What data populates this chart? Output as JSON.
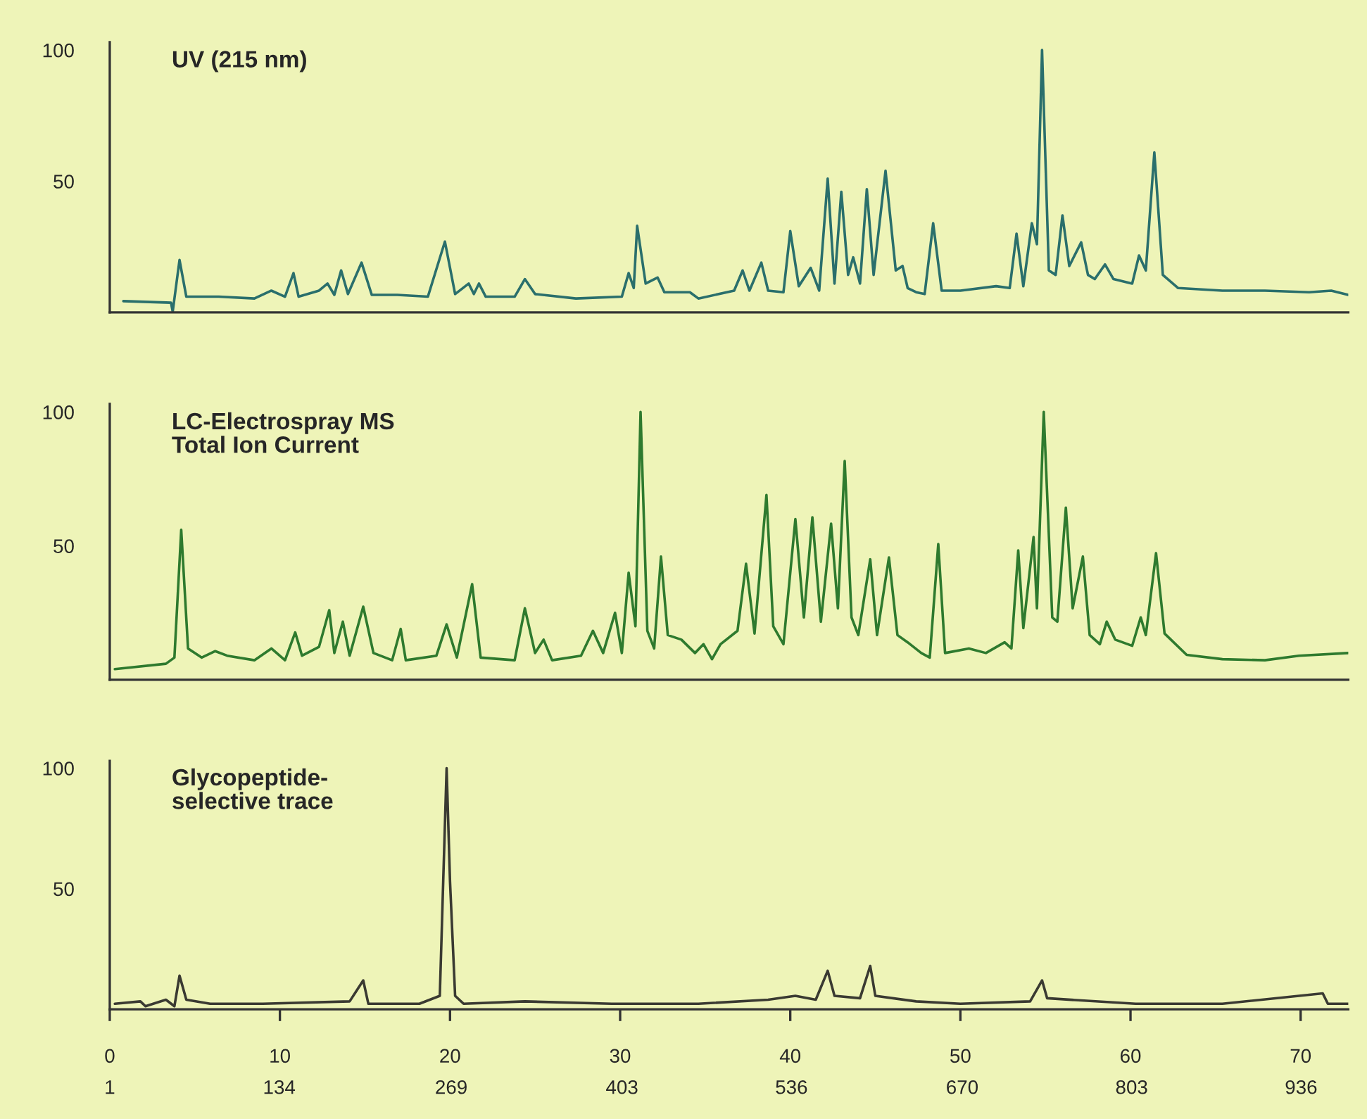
{
  "chart_data": [
    {
      "type": "line",
      "title": "UV (215 nm)",
      "tick_labels": "y",
      "xlim": [
        0,
        72.8
      ],
      "ylim": [
        0,
        103
      ],
      "xticks": [
        0,
        10,
        20,
        30,
        40,
        50,
        60,
        70
      ],
      "yticks": [
        50,
        100
      ],
      "grid": false,
      "series": [
        {
          "color": "#2a6f6c",
          "x": [
            0.8,
            3.6,
            3.7,
            4.1,
            4.5,
            6.4,
            8.5,
            9.5,
            10.3,
            10.8,
            11.1,
            12.3,
            12.8,
            13.2,
            13.6,
            14.0,
            14.8,
            15.4,
            16.9,
            18.7,
            19.7,
            20.3,
            21.1,
            21.4,
            21.7,
            22.1,
            23.8,
            24.4,
            25.0,
            27.4,
            30.1,
            30.5,
            30.8,
            31.0,
            31.5,
            32.2,
            32.6,
            34.1,
            34.6,
            36.7,
            37.2,
            37.6,
            38.3,
            38.7,
            39.6,
            40.0,
            40.5,
            41.2,
            41.7,
            42.2,
            42.6,
            43.0,
            43.4,
            43.7,
            44.1,
            44.5,
            44.9,
            45.6,
            46.2,
            46.6,
            46.9,
            47.4,
            47.9,
            48.4,
            48.9,
            50.0,
            52.1,
            52.9,
            53.3,
            53.7,
            54.2,
            54.5,
            54.8,
            55.2,
            55.6,
            56.0,
            56.4,
            57.1,
            57.5,
            57.9,
            58.5,
            59.0,
            60.1,
            60.5,
            60.9,
            61.4,
            61.9,
            62.8,
            65.4,
            67.9,
            70.5,
            71.8,
            72.8
          ],
          "values": [
            4.3,
            3.7,
            0.3,
            20,
            6,
            6,
            5.3,
            8.3,
            6,
            15,
            6,
            8.3,
            11,
            6.7,
            16,
            7,
            19,
            6.7,
            6.7,
            6,
            27,
            7,
            11,
            7,
            11,
            6,
            6,
            12.7,
            7,
            5.3,
            6,
            15,
            9.3,
            33,
            11,
            13.3,
            7.7,
            7.7,
            5.3,
            8.3,
            16,
            8.3,
            19,
            8.3,
            7.7,
            31,
            10,
            17,
            8.3,
            51,
            11,
            46,
            14.3,
            21,
            11,
            47,
            14.3,
            54,
            16,
            17.7,
            9.3,
            7.7,
            7,
            34,
            8.3,
            8.3,
            10,
            9.3,
            30,
            10,
            34,
            26,
            100,
            16,
            14.3,
            37,
            17.7,
            26.7,
            14.3,
            12.7,
            18.3,
            12.7,
            11,
            21.7,
            16,
            61,
            14.3,
            9.3,
            8.3,
            8.3,
            7.7,
            8.3,
            6.7
          ]
        }
      ]
    },
    {
      "type": "line",
      "title": "LC-Electrospray MS\nTotal Ion Current",
      "tick_labels": "y",
      "xlim": [
        0,
        72.8
      ],
      "ylim": [
        0,
        103
      ],
      "xticks": [
        0,
        10,
        20,
        30,
        40,
        50,
        60,
        70
      ],
      "yticks": [
        50,
        100
      ],
      "grid": false,
      "series": [
        {
          "color": "#2e7a2e",
          "x": [
            0.3,
            3.3,
            3.8,
            4.2,
            4.6,
            5.4,
            6.2,
            6.9,
            8.5,
            9.5,
            10.3,
            10.9,
            11.3,
            12.3,
            12.9,
            13.2,
            13.7,
            14.1,
            14.9,
            15.5,
            16.6,
            17.1,
            17.4,
            19.2,
            19.8,
            20.4,
            21.3,
            21.8,
            23.8,
            24.4,
            25.0,
            25.5,
            26.0,
            27.7,
            28.4,
            29.0,
            29.7,
            30.1,
            30.5,
            30.9,
            31.2,
            31.6,
            32.0,
            32.4,
            32.8,
            33.6,
            34.4,
            34.9,
            35.4,
            35.9,
            36.9,
            37.4,
            37.9,
            38.6,
            39.0,
            39.6,
            40.3,
            40.8,
            41.3,
            41.8,
            42.4,
            42.8,
            43.2,
            43.6,
            44.0,
            44.7,
            45.1,
            45.8,
            46.3,
            46.9,
            47.7,
            48.2,
            48.7,
            49.1,
            50.5,
            51.5,
            52.6,
            53.0,
            53.4,
            53.7,
            54.3,
            54.5,
            54.9,
            55.4,
            55.7,
            56.2,
            56.6,
            57.2,
            57.6,
            58.2,
            58.6,
            59.1,
            60.1,
            60.6,
            60.9,
            61.5,
            62.0,
            63.3,
            65.4,
            67.9,
            69.9,
            72.8
          ],
          "values": [
            4,
            6,
            8.3,
            56,
            11.7,
            8.3,
            10.7,
            9,
            7.3,
            11.7,
            7.3,
            17.7,
            9,
            12.3,
            26,
            10,
            21.7,
            9,
            27.3,
            10,
            7.3,
            19,
            7.3,
            9,
            20.7,
            8.3,
            35.7,
            8.3,
            7.3,
            26.7,
            10,
            15,
            7.3,
            9,
            18.3,
            10,
            25,
            10,
            40,
            20,
            100,
            18.3,
            11.7,
            46,
            16.7,
            15,
            10,
            13.3,
            7.7,
            13.3,
            18.3,
            43.3,
            17.3,
            69,
            20,
            13.3,
            60,
            23.3,
            60.7,
            21.7,
            58.3,
            26.7,
            81.7,
            23.3,
            16.7,
            45,
            16.7,
            45.7,
            16.7,
            14,
            10,
            8.3,
            50.7,
            10,
            11.7,
            10,
            14,
            11.7,
            48.3,
            19.3,
            53.3,
            26.7,
            100,
            23.3,
            21.7,
            64.3,
            26.7,
            46,
            16.7,
            13.3,
            21.7,
            15,
            12.7,
            23.3,
            16.7,
            47.3,
            17.3,
            9.3,
            7.7,
            7.3,
            9,
            10
          ]
        }
      ]
    },
    {
      "type": "line",
      "title": "Glycopeptide-\nselective trace",
      "xlim": [
        0,
        72.8
      ],
      "ylim": [
        0,
        103
      ],
      "xticks": [
        0,
        10,
        20,
        30,
        40,
        50,
        60,
        70
      ],
      "yticks": [
        50,
        100
      ],
      "x2lim": [
        1,
        973
      ],
      "x2ticks": [
        1,
        134,
        269,
        403,
        536,
        670,
        803,
        936
      ],
      "grid": false,
      "series": [
        {
          "color": "#3a3a32",
          "x": [
            0.3,
            1.8,
            2.1,
            3.3,
            3.8,
            4.1,
            4.5,
            5.9,
            9.0,
            14.1,
            14.9,
            15.2,
            18.2,
            19.4,
            19.6,
            19.8,
            20.0,
            20.3,
            20.8,
            24.4,
            29.5,
            34.6,
            38.7,
            40.3,
            41.5,
            42.2,
            42.6,
            44.1,
            44.7,
            45.0,
            47.4,
            50.0,
            54.1,
            54.8,
            55.1,
            60.3,
            65.4,
            71.3,
            71.6,
            72.8
          ],
          "values": [
            2.3,
            3.3,
            1.3,
            4,
            1.3,
            14,
            4,
            2.3,
            2.3,
            3.3,
            12,
            2.3,
            2.3,
            5.6,
            53,
            100,
            53,
            5.6,
            2.3,
            3.3,
            2.3,
            2.3,
            4,
            5.6,
            4,
            16,
            5.6,
            4.6,
            18,
            5.6,
            3.3,
            2.3,
            3.3,
            12,
            4.6,
            2.3,
            2.3,
            6.6,
            2.3,
            2.3
          ]
        }
      ]
    }
  ]
}
